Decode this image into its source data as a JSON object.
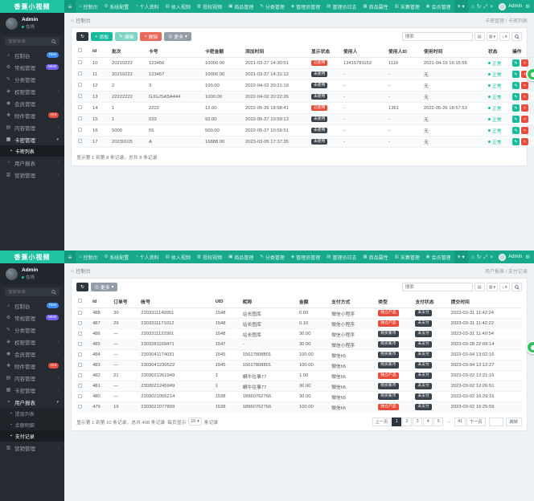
{
  "logo": "香蕉小视频",
  "colors": {
    "navbar_green": "#18a98c",
    "logo_green": "#1fc3a2",
    "sidebar_dark": "#252b31",
    "accent_green": "#18bc9c",
    "danger_red": "#e74c3c",
    "badge_blue": "#3d8ef8",
    "badge_purple": "#7460ee",
    "dark_button": "#2c3540",
    "float_button_green": "#2ec45a"
  },
  "navbar": {
    "items": [
      {
        "label": "控制台",
        "icon": "home-icon"
      },
      {
        "label": "系统配置",
        "icon": "gear-icon"
      },
      {
        "label": "个人资料",
        "icon": "user-icon"
      },
      {
        "label": "收入视频",
        "icon": "chart-icon"
      },
      {
        "label": "授权视频",
        "icon": "chart-icon"
      },
      {
        "label": "商品管理",
        "icon": "cart-icon"
      },
      {
        "label": "分类管理",
        "icon": "tags-icon"
      },
      {
        "label": "管理员管理",
        "icon": "admin-icon"
      },
      {
        "label": "管理员日志",
        "icon": "log-icon"
      },
      {
        "label": "商品属性",
        "icon": "box-icon"
      },
      {
        "label": "采集管理",
        "icon": "collect-icon"
      },
      {
        "label": "会员管理",
        "icon": "member-icon"
      }
    ],
    "window_icons": [
      "home-icon",
      "refresh-icon",
      "fullscreen-icon",
      "close-icon"
    ],
    "user": "Admin"
  },
  "sidebar_user": {
    "name": "Admin",
    "status": "在线"
  },
  "sidebar_search_placeholder": "搜索菜单",
  "panels": [
    {
      "sidebar_menu": [
        {
          "label": "控制台",
          "icon": "dashboard-icon",
          "badge": {
            "text": "New",
            "color": "blue"
          }
        },
        {
          "label": "常规管理",
          "icon": "gear-icon",
          "badge": {
            "text": "NEW",
            "color": "purple"
          }
        },
        {
          "label": "分类管理",
          "icon": "pencil-icon"
        },
        {
          "label": "权限管理",
          "icon": "auth-icon",
          "arrow": true
        },
        {
          "label": "会员管理",
          "icon": "member-icon",
          "arrow": true
        },
        {
          "label": "附件管理",
          "icon": "attachment-icon",
          "badge": {
            "text": "Hot",
            "color": "red"
          }
        },
        {
          "label": "内容管理",
          "icon": "content-icon",
          "arrow": true
        },
        {
          "label": "卡密管理",
          "icon": "card-icon",
          "expanded": true,
          "children": [
            {
              "label": "卡密列表",
              "active": true
            }
          ]
        },
        {
          "label": "用户报表",
          "icon": "user-icon",
          "arrow": true
        },
        {
          "label": "营销管理",
          "icon": "chart-icon",
          "arrow": true
        }
      ],
      "breadcrumb": {
        "home": "控制台",
        "trail": "卡密管理 / 卡密列表"
      },
      "toolbar": {
        "buttons": [
          {
            "name": "refresh",
            "label": "",
            "style": "dark",
            "icon": "refresh-icon"
          },
          {
            "name": "add",
            "label": "添加",
            "style": "success",
            "icon": "plus-icon"
          },
          {
            "name": "edit",
            "label": "编辑",
            "style": "success-light",
            "icon": "pencil-icon"
          },
          {
            "name": "delete",
            "label": "删除",
            "style": "danger",
            "icon": "trash-icon"
          },
          {
            "name": "more",
            "label": "更多",
            "style": "gray",
            "icon": "eye-icon",
            "caret": true
          }
        ],
        "search_placeholder": "搜索"
      },
      "table": {
        "columns": [
          {
            "label": "",
            "type": "checkbox"
          },
          {
            "label": "Id",
            "key": "id",
            "sort": true
          },
          {
            "label": "批次",
            "key": "batch"
          },
          {
            "label": "卡号",
            "key": "card_no"
          },
          {
            "label": "卡密金额",
            "key": "amount"
          },
          {
            "label": "添加时间",
            "key": "created_at"
          },
          {
            "label": "显示状态",
            "key": "display",
            "type": "badge"
          },
          {
            "label": "使用人",
            "key": "user"
          },
          {
            "label": "使用人ID",
            "key": "user_id"
          },
          {
            "label": "使用时间",
            "key": "used_at"
          },
          {
            "label": "状态",
            "key": "status",
            "type": "status"
          },
          {
            "label": "操作",
            "type": "ops"
          }
        ],
        "rows": [
          {
            "id": "10",
            "batch": "20210222",
            "card_no": "123456",
            "amount": "10000.00",
            "created_at": "2021-03-27 14:30:51",
            "display": {
              "t": "已使用",
              "c": "red"
            },
            "user": "13415781153",
            "user_id": "1119",
            "used_at": "2021-04-19 16:15:55",
            "status": "正常"
          },
          {
            "id": "11",
            "batch": "20210222",
            "card_no": "123457",
            "amount": "10000.00",
            "created_at": "2021-03-27 14:31:12",
            "display": {
              "t": "未使用",
              "c": "dark"
            },
            "user": "-",
            "user_id": "-",
            "used_at": "无",
            "status": "正常"
          },
          {
            "id": "12",
            "batch": "2",
            "card_no": "3",
            "amount": "100.00",
            "created_at": "2022-04-02 20:21:19",
            "display": {
              "t": "未使用",
              "c": "dark"
            },
            "user": "-",
            "user_id": "-",
            "used_at": "无",
            "status": "正常"
          },
          {
            "id": "13",
            "batch": "22222222",
            "card_no": "GJGJSA5A444",
            "amount": "1000.00",
            "created_at": "2022-04-02 20:22:26",
            "display": {
              "t": "未使用",
              "c": "dark"
            },
            "user": "-",
            "user_id": "-",
            "used_at": "无",
            "status": "正常"
          },
          {
            "id": "14",
            "batch": "1",
            "card_no": "2222",
            "amount": "12.00",
            "created_at": "2022-05-26 18:58:41",
            "display": {
              "t": "已使用",
              "c": "red"
            },
            "user": "-",
            "user_id": "1361",
            "used_at": "2022-05-26 18:57:53",
            "status": "正常"
          },
          {
            "id": "15",
            "batch": "1",
            "card_no": "033",
            "amount": "92.00",
            "created_at": "2022-05-27 10:59:13",
            "display": {
              "t": "未使用",
              "c": "dark"
            },
            "user": "-",
            "user_id": "-",
            "used_at": "无",
            "status": "正常"
          },
          {
            "id": "16",
            "batch": "5000",
            "card_no": "55",
            "amount": "500.00",
            "created_at": "2022-05-27 10:59:51",
            "display": {
              "t": "未使用",
              "c": "dark"
            },
            "user": "-",
            "user_id": "-",
            "used_at": "无",
            "status": "正常"
          },
          {
            "id": "17",
            "batch": "20230105",
            "card_no": "A",
            "amount": "16888.00",
            "created_at": "2023-03-05 17:37:35",
            "display": {
              "t": "未使用",
              "c": "dark"
            },
            "user": "-",
            "user_id": "-",
            "used_at": "无",
            "status": "正常"
          }
        ]
      },
      "footer": {
        "summary": "显示第 1 到第 8 条记录，总共 8 条记录"
      }
    },
    {
      "sidebar_menu": [
        {
          "label": "控制台",
          "icon": "dashboard-icon",
          "badge": {
            "text": "New",
            "color": "blue"
          }
        },
        {
          "label": "常规管理",
          "icon": "gear-icon",
          "badge": {
            "text": "NEW",
            "color": "purple"
          }
        },
        {
          "label": "分类管理",
          "icon": "pencil-icon"
        },
        {
          "label": "权限管理",
          "icon": "auth-icon",
          "arrow": true
        },
        {
          "label": "会员管理",
          "icon": "member-icon",
          "arrow": true
        },
        {
          "label": "附件管理",
          "icon": "attachment-icon",
          "badge": {
            "text": "Hot",
            "color": "red"
          }
        },
        {
          "label": "内容管理",
          "icon": "content-icon",
          "arrow": true
        },
        {
          "label": "卡密管理",
          "icon": "card-icon",
          "arrow": true
        },
        {
          "label": "用户报表",
          "icon": "user-icon",
          "expanded": true,
          "children": [
            {
              "label": "提现列表"
            },
            {
              "label": "余额明细"
            },
            {
              "label": "支付记录",
              "active": true
            }
          ]
        },
        {
          "label": "营销管理",
          "icon": "chart-icon",
          "arrow": true
        }
      ],
      "breadcrumb": {
        "home": "控制台",
        "trail": "用户报表 / 支付记录"
      },
      "toolbar": {
        "buttons": [
          {
            "name": "refresh",
            "label": "",
            "style": "dark",
            "icon": "refresh-icon"
          },
          {
            "name": "more",
            "label": "更多",
            "style": "gray",
            "icon": "eye-icon",
            "caret": true
          }
        ],
        "search_placeholder": "搜索"
      },
      "table": {
        "columns": [
          {
            "label": "",
            "type": "checkbox"
          },
          {
            "label": "Id",
            "key": "id",
            "sort": true
          },
          {
            "label": "订单号",
            "key": "order_no"
          },
          {
            "label": "帐号",
            "key": "account"
          },
          {
            "label": "UID",
            "key": "uid"
          },
          {
            "label": "昵称",
            "key": "nickname"
          },
          {
            "label": "金额",
            "key": "amount"
          },
          {
            "label": "支付方式",
            "key": "pay_method"
          },
          {
            "label": "类型",
            "key": "type",
            "type": "badge"
          },
          {
            "label": "支付状态",
            "key": "pay_status",
            "type": "badge"
          },
          {
            "label": "提交时间",
            "key": "submitted_at"
          }
        ],
        "rows": [
          {
            "id": "488",
            "order_no": "30",
            "account": "2303311149951",
            "uid": "1548",
            "nickname": "站长图库",
            "amount": "0.50",
            "pay_method": "微信小程序",
            "type": {
              "t": "独立产品",
              "c": "red"
            },
            "pay_status": {
              "t": "未支付",
              "c": "dark"
            },
            "submitted_at": "2023-03-31 11:42:24"
          },
          {
            "id": "487",
            "order_no": "29",
            "account": "2303311171012",
            "uid": "1548",
            "nickname": "站长图库",
            "amount": "0.10",
            "pay_method": "微信小程序",
            "type": {
              "t": "独立产品",
              "c": "red"
            },
            "pay_status": {
              "t": "未支付",
              "c": "dark"
            },
            "submitted_at": "2023-03-31 11:42:22"
          },
          {
            "id": "486",
            "order_no": "—",
            "account": "2303311122901",
            "uid": "1548",
            "nickname": "站长图库",
            "amount": "30.00",
            "pay_method": "微信小程序",
            "type": {
              "t": "购买蕉币",
              "c": "dark"
            },
            "pay_status": {
              "t": "未支付",
              "c": "dark"
            },
            "submitted_at": "2023-03-31 11:40:54"
          },
          {
            "id": "485",
            "order_no": "—",
            "account": "2303281169471",
            "uid": "1547",
            "nickname": "-",
            "amount": "30.00",
            "pay_method": "微信小程序",
            "type": {
              "t": "购买蕉币",
              "c": "dark"
            },
            "pay_status": {
              "t": "未支付",
              "c": "dark"
            },
            "submitted_at": "2023-03-28 22:09:14"
          },
          {
            "id": "484",
            "order_no": "—",
            "account": "2303041174031",
            "uid": "1545",
            "nickname": "15617808801",
            "amount": "100.00",
            "pay_method": "微信h5",
            "type": {
              "t": "购买蕉币",
              "c": "dark"
            },
            "pay_status": {
              "t": "未支付",
              "c": "dark"
            },
            "submitted_at": "2023-03-04 13:02:16"
          },
          {
            "id": "483",
            "order_no": "—",
            "account": "2303041230522",
            "uid": "1545",
            "nickname": "15617808801",
            "amount": "100.00",
            "pay_method": "微信h5",
            "type": {
              "t": "购买蕉币",
              "c": "dark"
            },
            "pay_status": {
              "t": "未支付",
              "c": "dark"
            },
            "submitted_at": "2023-03-04 12:12:27"
          },
          {
            "id": "482",
            "order_no": "21",
            "account": "2303021261949",
            "uid": "1",
            "nickname": "蜗牛往事77",
            "amount": "1.00",
            "pay_method": "微信h5",
            "type": {
              "t": "独立产品",
              "c": "red"
            },
            "pay_status": {
              "t": "未支付",
              "c": "dark"
            },
            "submitted_at": "2023-03-02 12:21:16"
          },
          {
            "id": "481",
            "order_no": "—",
            "account": "2303021245949",
            "uid": "1",
            "nickname": "蜗牛往事77",
            "amount": "30.00",
            "pay_method": "微信h5",
            "type": {
              "t": "购买蕉币",
              "c": "dark"
            },
            "pay_status": {
              "t": "未支付",
              "c": "dark"
            },
            "submitted_at": "2023-03-02 12:26:51"
          },
          {
            "id": "480",
            "order_no": "—",
            "account": "2303021055214",
            "uid": "1538",
            "nickname": "18960762766",
            "amount": "30.00",
            "pay_method": "微信h5",
            "type": {
              "t": "购买蕉币",
              "c": "dark"
            },
            "pay_status": {
              "t": "未支付",
              "c": "dark"
            },
            "submitted_at": "2023-03-02 16:29:16"
          },
          {
            "id": "479",
            "order_no": "19",
            "account": "2303021077809",
            "uid": "1538",
            "nickname": "18960762766",
            "amount": "100.00",
            "pay_method": "微信h5",
            "type": {
              "t": "独立产品",
              "c": "red"
            },
            "pay_status": {
              "t": "未支付",
              "c": "dark"
            },
            "submitted_at": "2023-03-02 16:25:59"
          }
        ]
      },
      "footer": {
        "summary": "显示第 1 到第 10 条记录，总共 408 条记录",
        "per_page_label": "每页显示",
        "per_page": "10",
        "per_page_suffix": "条记录",
        "pagination": {
          "items": [
            {
              "label": "上一页"
            },
            {
              "label": "1",
              "active": true
            },
            {
              "label": "2"
            },
            {
              "label": "3"
            },
            {
              "label": "4"
            },
            {
              "label": "5"
            },
            {
              "label": "...",
              "dots": true
            },
            {
              "label": "41"
            },
            {
              "label": "下一页"
            }
          ],
          "jump_label": "跳转"
        }
      }
    }
  ]
}
